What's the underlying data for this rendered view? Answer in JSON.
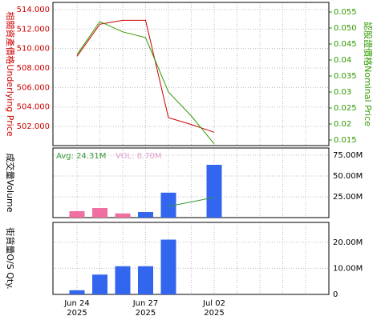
{
  "chart_data": [
    {
      "type": "line",
      "y_label": "相關資產價格Underlying Price",
      "y2_label": "認股證價格Nominal Price",
      "ylim": [
        500.03,
        514.74
      ],
      "yticks": [
        {
          "value": 502,
          "label": "502.000"
        },
        {
          "value": 504,
          "label": "504.000"
        },
        {
          "value": 506,
          "label": "506.000"
        },
        {
          "value": 508,
          "label": "508.000"
        },
        {
          "value": 510,
          "label": "510.000"
        },
        {
          "value": 512,
          "label": "512.000"
        },
        {
          "value": 514,
          "label": "514.000"
        }
      ],
      "y2lim": [
        0.01325,
        0.058
      ],
      "y2ticks": [
        0.015,
        0.02,
        0.025,
        0.03,
        0.035,
        0.04,
        0.045,
        {
          "value": 0.05,
          "label": "0.050"
        },
        0.055
      ],
      "grid": true,
      "series": [
        {
          "name": "Underlying Price",
          "color": "#cc0000",
          "axis": "y",
          "values": [
            509.2,
            512.5,
            512.9,
            512.9,
            502.9,
            502.2,
            501.4,
            null,
            null,
            null,
            null
          ]
        },
        {
          "name": "Nominal Price",
          "color": "#339900",
          "axis": "y2",
          "values": [
            0.0417,
            0.052,
            0.0488,
            0.047,
            0.03,
            0.0225,
            0.0138,
            null,
            null,
            null,
            null
          ]
        }
      ]
    },
    {
      "type": "bar",
      "y_label": "成交量Volume",
      "avg_label": "Avg: 24.31M",
      "vol_label": "VOL: 8.70M",
      "ylim": [
        0,
        83700000
      ],
      "yticks": [
        {
          "value": 25000000,
          "label": "25.00M"
        },
        {
          "value": 50000000,
          "label": "50.00M"
        },
        {
          "value": 75000000,
          "label": "75.00M"
        }
      ],
      "grid": true,
      "series": [
        {
          "name": "Volume",
          "type": "bar",
          "colors": [
            "#f06ea0",
            "#f06ea0",
            "#f06ea0",
            "#3366ee",
            "#3366ee",
            null,
            "#3366ee",
            null,
            null,
            null,
            null
          ],
          "values": [
            7700000,
            11500000,
            5000000,
            6700000,
            30000000,
            null,
            63500000,
            null,
            null,
            null,
            null
          ]
        },
        {
          "name": "Avg",
          "type": "line",
          "color": "#339933",
          "values": [
            null,
            null,
            null,
            null,
            13500000,
            18900000,
            24310000,
            null,
            null,
            null,
            null
          ]
        }
      ]
    },
    {
      "type": "bar",
      "y_label": "街貨量O/S Qty.",
      "ylim": [
        0,
        27600000
      ],
      "yticks": [
        0,
        {
          "value": 10000000,
          "label": "10.00M"
        },
        {
          "value": 20000000,
          "label": "20.00M"
        }
      ],
      "grid": true,
      "categories": [
        [
          "Jun 24",
          "2025"
        ],
        null,
        null,
        [
          "Jun 27",
          "2025"
        ],
        null,
        null,
        [
          "Jul 02",
          "2025"
        ],
        null,
        null,
        null,
        null
      ],
      "series": [
        {
          "name": "O/S Qty",
          "type": "bar",
          "color": "#3366ee",
          "values": [
            1600000,
            7600000,
            10800000,
            10800000,
            21000000,
            null,
            null,
            null,
            null,
            null,
            null
          ]
        }
      ]
    }
  ]
}
